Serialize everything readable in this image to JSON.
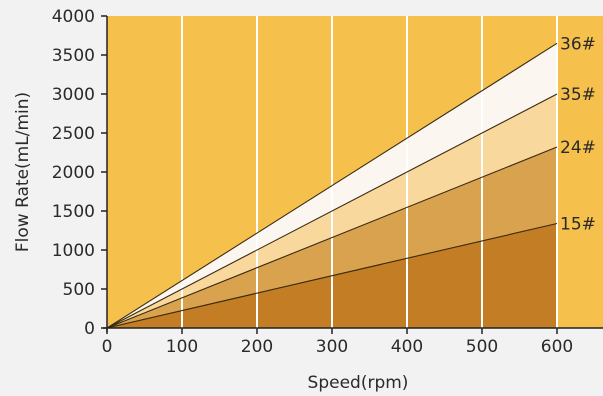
{
  "chart_data": {
    "type": "area",
    "title": "",
    "xlabel": "Speed(rpm)",
    "ylabel": "Flow Rate(mL/min)",
    "xlim": [
      0,
      600
    ],
    "ylim": [
      0,
      4000
    ],
    "x_ticks": [
      "0",
      "100",
      "200",
      "300",
      "400",
      "500",
      "600"
    ],
    "y_ticks": [
      "0",
      "500",
      "1000",
      "1500",
      "2000",
      "2500",
      "3000",
      "3500",
      "4000"
    ],
    "grid": "vertical",
    "x": [
      0,
      600
    ],
    "series": [
      {
        "name": "36#",
        "values": [
          0,
          3650
        ],
        "color": "#fbf6ef"
      },
      {
        "name": "35#",
        "values": [
          0,
          3000
        ],
        "color": "#f8d89c"
      },
      {
        "name": "24#",
        "values": [
          0,
          2320
        ],
        "color": "#d9a24e"
      },
      {
        "name": "15#",
        "values": [
          0,
          1340
        ],
        "color": "#c27d25"
      }
    ],
    "background_color": "#f5c04b",
    "outside_color": "#f2f2f2"
  }
}
